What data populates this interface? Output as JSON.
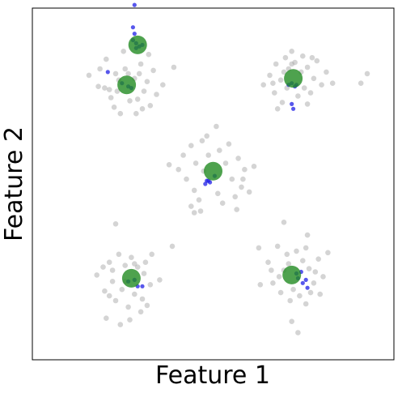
{
  "chart_data": {
    "type": "scatter",
    "xlabel": "Feature 1",
    "ylabel": "Feature 2",
    "xticks": [],
    "yticks": [],
    "grid": false,
    "legend": "none",
    "xlim": [
      -11.5,
      11.5
    ],
    "ylim": [
      -11.0,
      11.0
    ],
    "colors": {
      "background_points": "#a0a0a0",
      "highlight_points": "#1f1fe6",
      "centers": "#228b22"
    },
    "clusters": [
      {
        "center": [
          -5.5,
          6.2
        ],
        "spread": 1.2
      },
      {
        "center": [
          5.5,
          6.6
        ],
        "spread": 1.2
      },
      {
        "center": [
          0.0,
          0.7
        ],
        "spread": 1.2
      },
      {
        "center": [
          -5.5,
          -5.8
        ],
        "spread": 1.2
      },
      {
        "center": [
          5.5,
          -5.5
        ],
        "spread": 1.2
      }
    ],
    "centers": [
      [
        -5.5,
        6.2
      ],
      [
        -4.8,
        8.7
      ],
      [
        5.1,
        6.6
      ],
      [
        0.0,
        0.8
      ],
      [
        -5.2,
        -5.9
      ],
      [
        5.0,
        -5.7
      ]
    ],
    "highlight_points": [
      [
        -5.0,
        11.2
      ],
      [
        -5.1,
        9.8
      ],
      [
        -5.0,
        9.4
      ],
      [
        -5.1,
        9.0
      ],
      [
        -4.9,
        8.8
      ],
      [
        -4.7,
        8.6
      ],
      [
        -4.5,
        8.7
      ],
      [
        -4.9,
        8.5
      ],
      [
        -6.7,
        7.0
      ],
      [
        -5.8,
        6.3
      ],
      [
        -5.4,
        6.1
      ],
      [
        -5.2,
        6.0
      ],
      [
        5.0,
        6.3
      ],
      [
        4.8,
        6.2
      ],
      [
        5.2,
        6.1
      ],
      [
        5.3,
        6.2
      ],
      [
        5.0,
        5.0
      ],
      [
        5.1,
        4.7
      ],
      [
        -0.5,
        0.0
      ],
      [
        -0.3,
        0.2
      ],
      [
        -0.2,
        0.1
      ],
      [
        0.1,
        0.5
      ],
      [
        -0.4,
        0.2
      ],
      [
        -5.0,
        -6.0
      ],
      [
        -4.8,
        -6.4
      ],
      [
        -4.5,
        -6.4
      ],
      [
        -5.4,
        -6.1
      ],
      [
        5.6,
        -5.5
      ],
      [
        5.4,
        -5.9
      ],
      [
        5.7,
        -6.2
      ],
      [
        5.9,
        -6.0
      ],
      [
        6.0,
        -6.5
      ],
      [
        5.3,
        -5.6
      ]
    ],
    "background_points": [
      [
        -7.9,
        6.8
      ],
      [
        -7.3,
        6.1
      ],
      [
        -6.8,
        7.8
      ],
      [
        -6.5,
        5.4
      ],
      [
        -6.2,
        6.9
      ],
      [
        -6.1,
        5.8
      ],
      [
        -5.9,
        4.4
      ],
      [
        -5.6,
        7.2
      ],
      [
        -5.3,
        5.2
      ],
      [
        -5.0,
        6.6
      ],
      [
        -4.8,
        5.3
      ],
      [
        -4.6,
        7.5
      ],
      [
        -4.4,
        5.8
      ],
      [
        -4.2,
        6.4
      ],
      [
        -4.0,
        4.9
      ],
      [
        -3.8,
        7.1
      ],
      [
        -3.2,
        6.2
      ],
      [
        -6.9,
        6.0
      ],
      [
        -6.3,
        4.8
      ],
      [
        -5.7,
        8.3
      ],
      [
        -4.9,
        4.4
      ],
      [
        -4.1,
        8.1
      ],
      [
        -3.6,
        5.6
      ],
      [
        -2.5,
        7.3
      ],
      [
        -7.2,
        7.2
      ],
      [
        -6.0,
        6.5
      ],
      [
        -5.4,
        6.9
      ],
      [
        -4.7,
        6.9
      ],
      [
        -4.5,
        4.7
      ],
      [
        -6.6,
        5.9
      ],
      [
        3.2,
        6.2
      ],
      [
        3.6,
        6.8
      ],
      [
        3.9,
        5.7
      ],
      [
        4.0,
        7.5
      ],
      [
        4.3,
        6.5
      ],
      [
        4.4,
        5.1
      ],
      [
        4.6,
        7.9
      ],
      [
        4.8,
        7.2
      ],
      [
        5.0,
        8.3
      ],
      [
        5.2,
        7.6
      ],
      [
        5.4,
        5.5
      ],
      [
        5.6,
        7.0
      ],
      [
        5.8,
        6.0
      ],
      [
        6.0,
        7.3
      ],
      [
        6.2,
        5.7
      ],
      [
        6.4,
        6.6
      ],
      [
        6.6,
        7.7
      ],
      [
        6.9,
        6.2
      ],
      [
        7.2,
        7.0
      ],
      [
        7.6,
        6.3
      ],
      [
        9.4,
        6.3
      ],
      [
        9.8,
        6.9
      ],
      [
        4.1,
        4.7
      ],
      [
        5.7,
        8.0
      ],
      [
        4.7,
        6.0
      ],
      [
        6.0,
        5.0
      ],
      [
        4.5,
        7.0
      ],
      [
        6.3,
        7.9
      ],
      [
        3.8,
        6.3
      ],
      [
        5.0,
        7.5
      ],
      [
        -2.8,
        1.2
      ],
      [
        -2.2,
        0.9
      ],
      [
        -1.9,
        1.8
      ],
      [
        -1.7,
        0.3
      ],
      [
        -1.4,
        2.4
      ],
      [
        -1.2,
        -0.4
      ],
      [
        -1.1,
        1.3
      ],
      [
        -0.9,
        -1.0
      ],
      [
        -0.7,
        2.7
      ],
      [
        -0.6,
        0.8
      ],
      [
        -0.4,
        3.0
      ],
      [
        -0.3,
        1.8
      ],
      [
        0.3,
        -0.6
      ],
      [
        0.4,
        2.1
      ],
      [
        0.6,
        -1.2
      ],
      [
        0.8,
        1.3
      ],
      [
        1.0,
        2.5
      ],
      [
        1.2,
        0.3
      ],
      [
        1.4,
        -0.8
      ],
      [
        1.6,
        1.6
      ],
      [
        1.8,
        -0.2
      ],
      [
        2.0,
        0.9
      ],
      [
        2.3,
        -0.5
      ],
      [
        2.6,
        1.1
      ],
      [
        -1.4,
        -1.4
      ],
      [
        -1.2,
        -1.8
      ],
      [
        1.5,
        -1.6
      ],
      [
        0.2,
        3.6
      ],
      [
        -0.8,
        -1.7
      ],
      [
        1.9,
        0.3
      ],
      [
        -7.4,
        -5.7
      ],
      [
        -7.0,
        -5.2
      ],
      [
        -6.9,
        -6.7
      ],
      [
        -6.6,
        -4.9
      ],
      [
        -6.4,
        -6.1
      ],
      [
        -6.2,
        -7.3
      ],
      [
        -6.0,
        -4.4
      ],
      [
        -5.8,
        -6.6
      ],
      [
        -5.6,
        -5.1
      ],
      [
        -5.4,
        -7.7
      ],
      [
        -5.2,
        -4.6
      ],
      [
        -5.0,
        -6.9
      ],
      [
        -4.8,
        -5.2
      ],
      [
        -4.5,
        -7.2
      ],
      [
        -4.3,
        -4.9
      ],
      [
        -4.0,
        -6.3
      ],
      [
        -3.9,
        -4.4
      ],
      [
        -6.2,
        -2.5
      ],
      [
        -5.9,
        -8.8
      ],
      [
        -5.3,
        -8.5
      ],
      [
        -4.6,
        -8.0
      ],
      [
        -3.4,
        -6.0
      ],
      [
        -4.2,
        -7.6
      ],
      [
        -6.8,
        -8.4
      ],
      [
        -2.6,
        -3.9
      ],
      [
        -6.4,
        -5.4
      ],
      [
        -5.6,
        -6.1
      ],
      [
        -4.4,
        -5.6
      ],
      [
        -5.0,
        -5.0
      ],
      [
        -6.6,
        -7.0
      ],
      [
        3.5,
        -4.9
      ],
      [
        3.8,
        -6.2
      ],
      [
        4.1,
        -3.9
      ],
      [
        4.3,
        -6.8
      ],
      [
        4.5,
        -5.4
      ],
      [
        4.7,
        -4.4
      ],
      [
        4.9,
        -7.3
      ],
      [
        5.1,
        -6.6
      ],
      [
        5.3,
        -4.2
      ],
      [
        5.5,
        -7.0
      ],
      [
        5.7,
        -4.8
      ],
      [
        5.9,
        -7.5
      ],
      [
        6.1,
        -5.3
      ],
      [
        6.4,
        -6.2
      ],
      [
        6.7,
        -4.7
      ],
      [
        7.0,
        -5.8
      ],
      [
        7.3,
        -4.3
      ],
      [
        4.5,
        -2.4
      ],
      [
        5.0,
        -8.6
      ],
      [
        5.4,
        -9.3
      ],
      [
        6.0,
        -3.2
      ],
      [
        3.0,
        -6.3
      ],
      [
        2.9,
        -4.0
      ],
      [
        6.8,
        -6.9
      ],
      [
        4.2,
        -5.8
      ],
      [
        5.9,
        -4.0
      ],
      [
        6.2,
        -6.8
      ],
      [
        3.7,
        -5.4
      ],
      [
        4.8,
        -5.0
      ],
      [
        6.5,
        -5.5
      ]
    ]
  }
}
